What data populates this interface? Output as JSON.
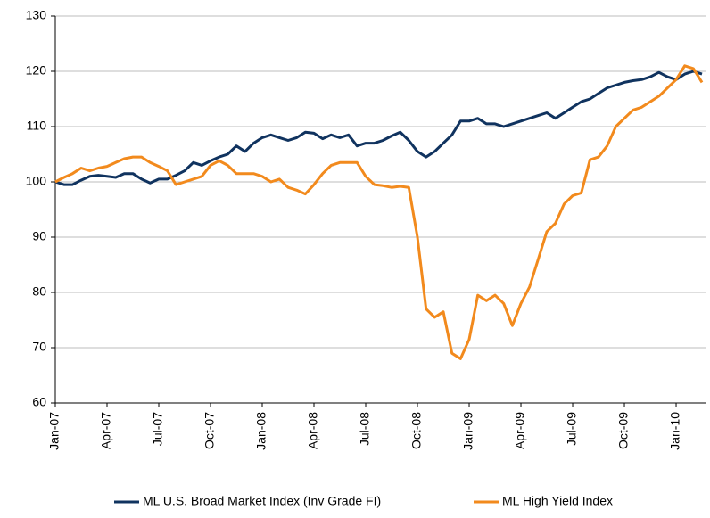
{
  "chart_data": {
    "type": "line",
    "categories": [
      "Jan-07",
      null,
      null,
      null,
      null,
      null,
      "Apr-07",
      null,
      null,
      null,
      null,
      null,
      "Jul-07",
      null,
      null,
      null,
      null,
      null,
      "Oct-07",
      null,
      null,
      null,
      null,
      null,
      "Jan-08",
      null,
      null,
      null,
      null,
      null,
      "Apr-08",
      null,
      null,
      null,
      null,
      null,
      "Jul-08",
      null,
      null,
      null,
      null,
      null,
      "Oct-08",
      null,
      null,
      null,
      null,
      null,
      "Jan-09",
      null,
      null,
      null,
      null,
      null,
      "Apr-09",
      null,
      null,
      null,
      null,
      null,
      "Jul-09",
      null,
      null,
      null,
      null,
      null,
      "Oct-09",
      null,
      null,
      null,
      null,
      null,
      "Jan-10",
      null,
      null,
      null
    ],
    "series": [
      {
        "name": "ML U.S. Broad Market Index (Inv Grade FI)",
        "color": "#10335f",
        "values": [
          100,
          99.5,
          99.5,
          100.3,
          101,
          101.2,
          101,
          100.8,
          101.5,
          101.5,
          100.5,
          99.8,
          100.5,
          100.5,
          101.2,
          102,
          103.5,
          103,
          103.8,
          104.5,
          105,
          106.5,
          105.5,
          107,
          108,
          108.5,
          108,
          107.5,
          108,
          109,
          108.8,
          107.8,
          108.5,
          108,
          108.5,
          106.5,
          107,
          107,
          107.5,
          108.3,
          109,
          107.5,
          105.5,
          104.5,
          105.5,
          107,
          108.5,
          111,
          111,
          111.5,
          110.5,
          110.5,
          110,
          110.5,
          111,
          111.5,
          112,
          112.5,
          111.5,
          112.5,
          113.5,
          114.5,
          115,
          116,
          117,
          117.5,
          118,
          118.3,
          118.5,
          119,
          119.8,
          119,
          118.5,
          119.5,
          120,
          119.5
        ]
      },
      {
        "name": "ML High Yield Index",
        "color": "#f28a1d",
        "values": [
          100,
          100.8,
          101.5,
          102.5,
          102,
          102.5,
          102.8,
          103.5,
          104.2,
          104.5,
          104.5,
          103.5,
          102.8,
          102,
          99.5,
          100,
          100.5,
          101,
          103,
          103.8,
          103,
          101.5,
          101.5,
          101.5,
          101,
          100,
          100.5,
          99,
          98.5,
          97.8,
          99.5,
          101.5,
          103,
          103.5,
          103.5,
          103.5,
          101,
          99.5,
          99.3,
          99,
          99.2,
          99,
          90,
          77,
          75.5,
          76.5,
          69,
          68,
          71.5,
          79.5,
          78.5,
          79.5,
          78,
          74,
          78,
          81,
          86,
          91,
          92.5,
          96,
          97.5,
          98,
          104,
          104.5,
          106.5,
          110,
          111.5,
          113,
          113.5,
          114.5,
          115.5,
          117,
          118.5,
          121,
          120.5,
          118
        ]
      }
    ],
    "ylim": [
      60,
      130
    ],
    "yticks": [
      60,
      70,
      80,
      90,
      100,
      110,
      120,
      130
    ],
    "grid": true,
    "legend": "bottom"
  }
}
